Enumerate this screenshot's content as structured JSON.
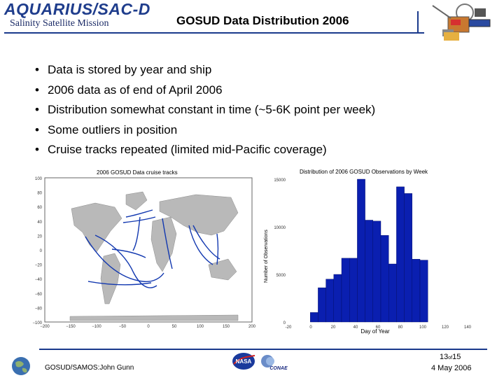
{
  "header": {
    "logo_text": "AQUARIUS/SAC-D",
    "mission": "Salinity Satellite Mission",
    "title": "GOSUD Data Distribution 2006"
  },
  "bullets": [
    "Data is stored by year and ship",
    "2006 data as of end of April 2006",
    "Distribution somewhat constant in time (~5-6K point per week)",
    "Some outliers in position",
    "Cruise tracks repeated (limited mid-Pacific coverage)"
  ],
  "map": {
    "title": "2006 GOSUD Data cruise tracks",
    "y_ticks": [
      "100",
      "80",
      "60",
      "40",
      "20",
      "0",
      "−20",
      "−40",
      "−60",
      "−80",
      "−100"
    ],
    "x_ticks": [
      "−200",
      "−150",
      "−100",
      "−50",
      "0",
      "50",
      "100",
      "150",
      "200"
    ]
  },
  "chart_data": {
    "type": "bar",
    "title": "Distribution of 2006 GOSUD Observations by Week",
    "xlabel": "Day of Year",
    "ylabel": "Number of Observations",
    "xlim": [
      -20,
      140
    ],
    "ylim": [
      0,
      15000
    ],
    "x_ticks": [
      "-20",
      "0",
      "20",
      "40",
      "60",
      "80",
      "100",
      "120",
      "140"
    ],
    "y_ticks": [
      "0",
      "5000",
      "10000",
      "15000"
    ],
    "x": [
      3,
      10,
      17,
      24,
      31,
      38,
      45,
      52,
      59,
      66,
      73,
      80,
      87,
      94,
      101
    ],
    "values": [
      1000,
      3600,
      4500,
      5000,
      6700,
      6700,
      15000,
      10700,
      10600,
      9100,
      6100,
      14200,
      13500,
      6600,
      6500
    ],
    "bar_width": 7,
    "bar_color": "#0a1fb0"
  },
  "footer": {
    "credit": "GOSUD/SAMOS:John Gunn",
    "page_num": "13",
    "page_of": "of",
    "page_total": "15",
    "date": "4 May 2006",
    "nasa_label": "NASA",
    "conae_label": "CONAE"
  },
  "colors": {
    "accent": "#1a3a8c",
    "track": "#1238b0",
    "land": "#b8b8b8"
  }
}
